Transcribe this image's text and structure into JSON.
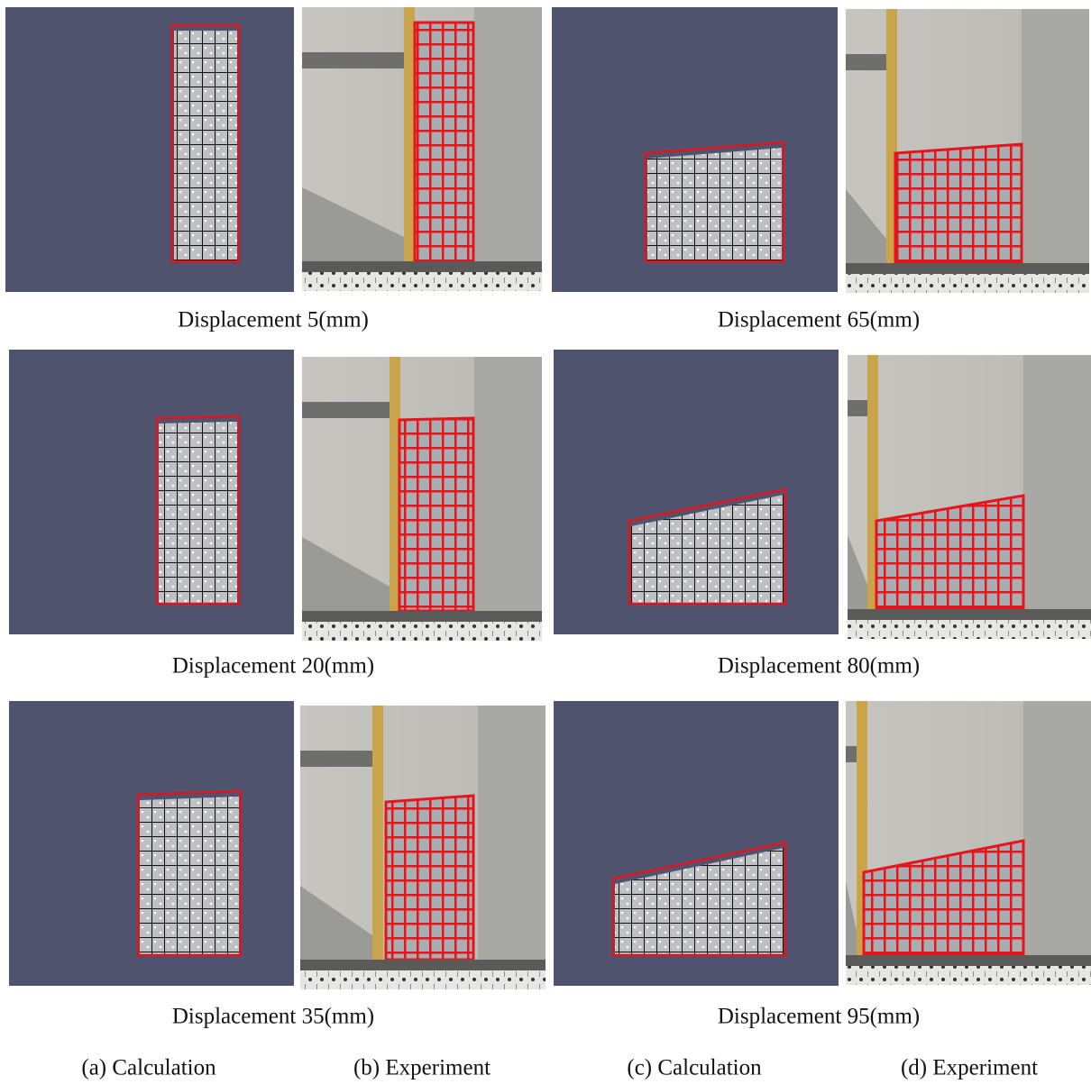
{
  "figure": {
    "rows": [
      {
        "left_caption": "Displacement 5(mm)",
        "right_caption": "Displacement 65(mm)"
      },
      {
        "left_caption": "Displacement 20(mm)",
        "right_caption": "Displacement 80(mm)"
      },
      {
        "left_caption": "Displacement 35(mm)",
        "right_caption": "Displacement 95(mm)"
      }
    ],
    "column_labels": [
      "(a) Calculation",
      "(b) Experiment",
      "(c) Calculation",
      "(d) Experiment"
    ]
  }
}
